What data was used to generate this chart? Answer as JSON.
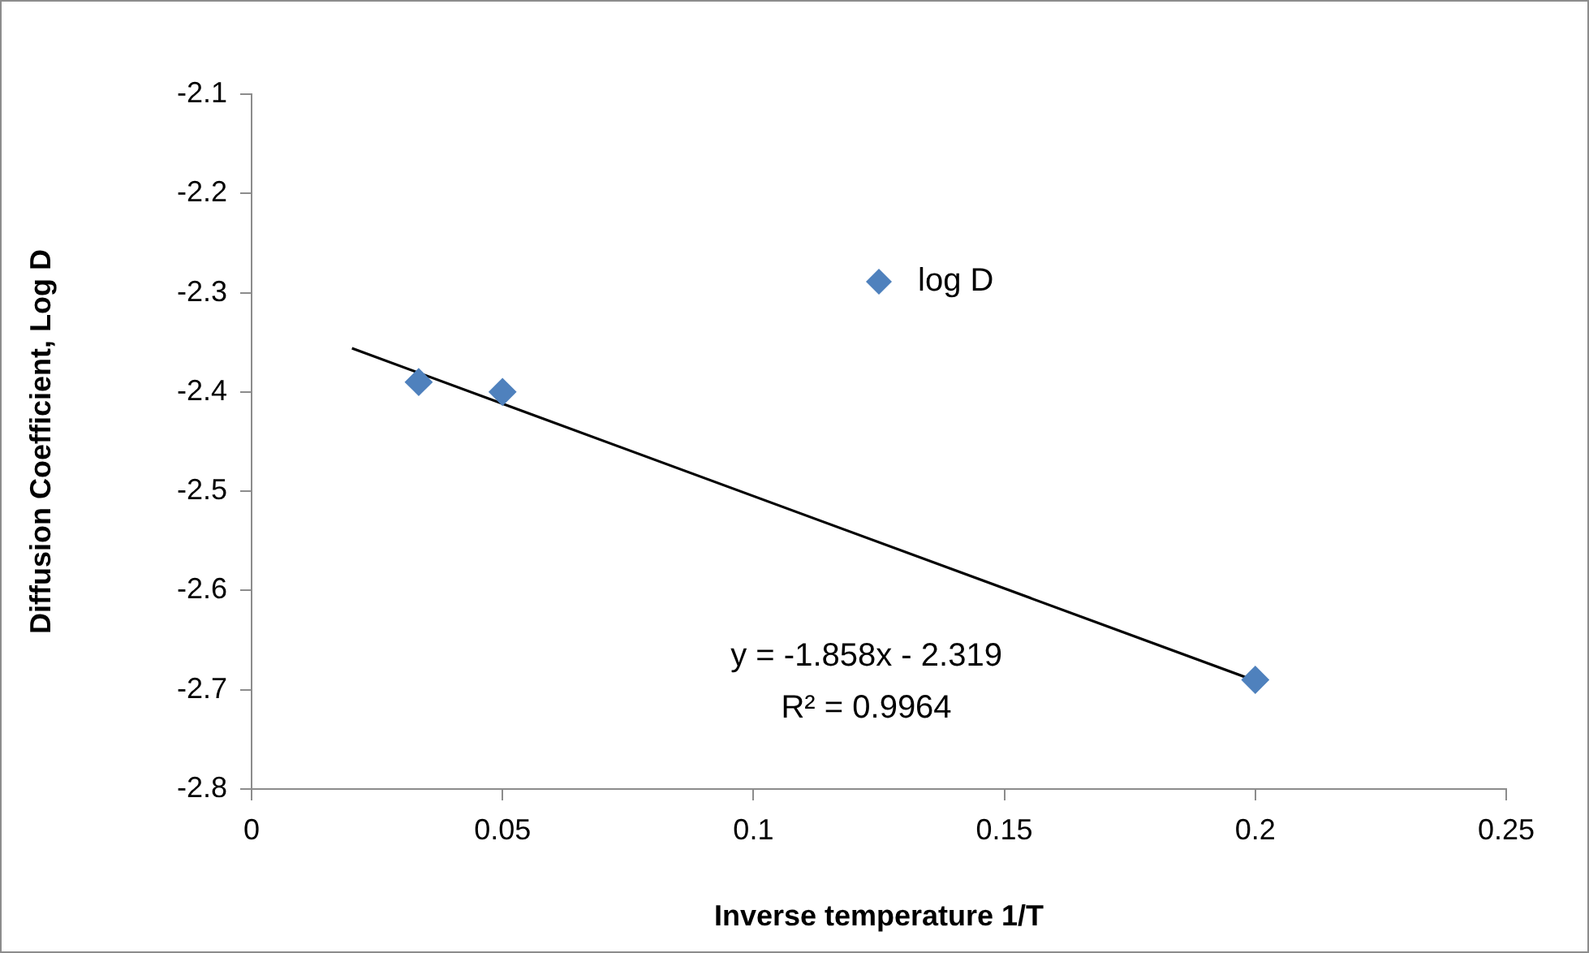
{
  "chart_data": {
    "type": "scatter",
    "xlabel": "Inverse temperature 1/T",
    "ylabel": "Diffusion Coefficient, Log D",
    "series": [
      {
        "name": "log D",
        "marker": "diamond",
        "color": "#4f81bd",
        "x": [
          0.0333,
          0.05,
          0.2
        ],
        "values": [
          -2.39,
          -2.4,
          -2.69
        ]
      },
      {
        "type": "line",
        "marker": "none",
        "color": "#000000",
        "x": [
          0.02,
          0.2
        ],
        "values": [
          -2.356,
          -2.691
        ]
      }
    ],
    "xlim": [
      0,
      0.25
    ],
    "xticks": [
      0,
      0.05,
      0.1,
      0.15,
      0.2,
      0.25
    ],
    "ylim": [
      -2.8,
      -2.1
    ],
    "yticks": [
      -2.8,
      -2.7,
      -2.6,
      -2.5,
      -2.4,
      -2.3,
      -2.2,
      -2.1
    ],
    "annotations": [
      "y = -1.858x - 2.319",
      "R² = 0.9964"
    ],
    "legend": "top right",
    "grid": false
  }
}
